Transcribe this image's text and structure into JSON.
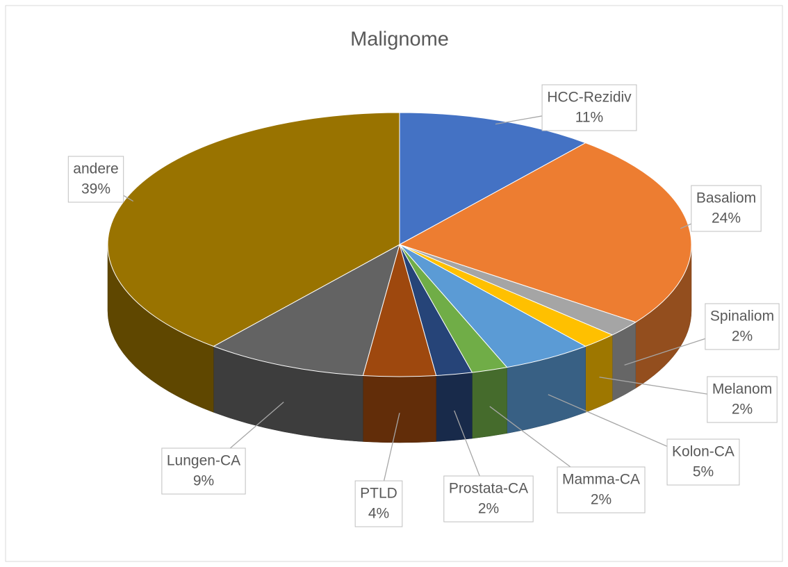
{
  "chart_data": {
    "type": "pie",
    "title": "Malignome",
    "categories": [
      "HCC-Rezidiv",
      "Basaliom",
      "Spinaliom",
      "Melanom",
      "Kolon-CA",
      "Mamma-CA",
      "Prostata-CA",
      "PTLD",
      "Lungen-CA",
      "andere"
    ],
    "values": [
      11,
      24,
      2,
      2,
      5,
      2,
      2,
      4,
      9,
      39
    ],
    "value_labels": [
      "11%",
      "24%",
      "2%",
      "2%",
      "5%",
      "2%",
      "2%",
      "4%",
      "9%",
      "39%"
    ],
    "colors": [
      "#4472c4",
      "#ed7d31",
      "#a5a5a5",
      "#ffc000",
      "#5b9bd5",
      "#70ad47",
      "#264478",
      "#9e480e",
      "#636363",
      "#997300"
    ]
  }
}
